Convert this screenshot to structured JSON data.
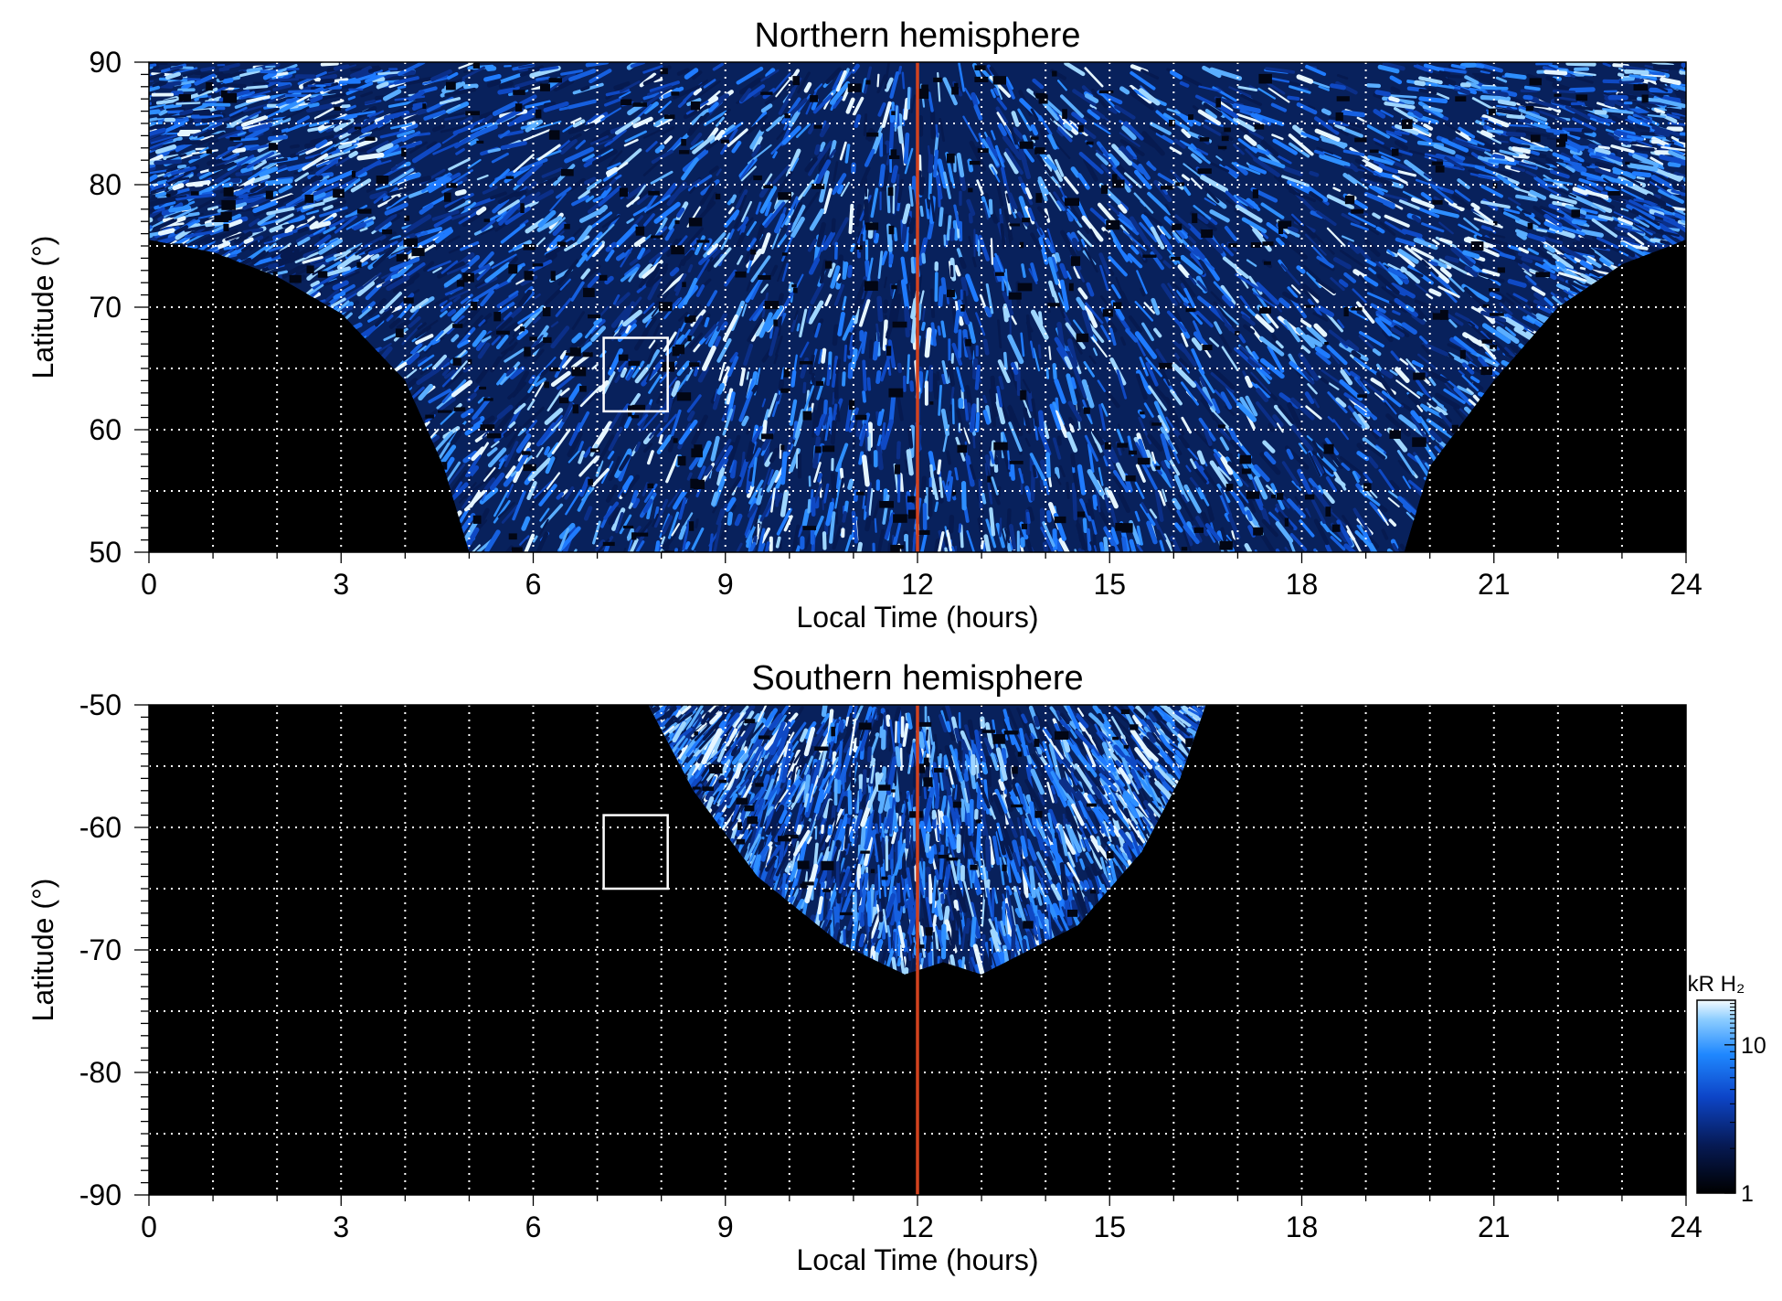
{
  "colors": {
    "background": "#000000",
    "emission_dim": "#0a2a70",
    "emission_mid": "#1f78ff",
    "emission_bright": "#a9dcff",
    "noon_line": "#d2421e",
    "grid": "#ffffff",
    "box": "#ffffff"
  },
  "chart_data": [
    {
      "id": "north",
      "type": "heatmap",
      "title": "Northern hemisphere",
      "xlabel": "Local Time (hours)",
      "ylabel": "Latitude (°)",
      "xlim": [
        0,
        24
      ],
      "ylim": [
        50,
        90
      ],
      "xticks": [
        0,
        3,
        6,
        9,
        12,
        15,
        18,
        21,
        24
      ],
      "yticks": [
        50,
        60,
        70,
        80,
        90
      ],
      "x_grid_step": 1,
      "y_grid_step": 5,
      "grid": true,
      "noon_line_x": 12,
      "highlight_box": {
        "x": [
          7.1,
          8.1
        ],
        "y": [
          61.5,
          67.5
        ]
      },
      "coverage_boundary": [
        [
          0,
          75.5
        ],
        [
          1,
          74.5
        ],
        [
          2,
          72.5
        ],
        [
          3,
          69.5
        ],
        [
          4,
          64
        ],
        [
          4.6,
          57
        ],
        [
          5,
          50
        ],
        [
          19.6,
          50
        ],
        [
          20,
          57
        ],
        [
          21,
          64
        ],
        [
          22,
          70
        ],
        [
          23,
          73.5
        ],
        [
          24,
          75.5
        ]
      ]
    },
    {
      "id": "south",
      "type": "heatmap",
      "title": "Southern hemisphere",
      "xlabel": "Local Time (hours)",
      "ylabel": "Latitude (°)",
      "xlim": [
        0,
        24
      ],
      "ylim": [
        -90,
        -50
      ],
      "xticks": [
        0,
        3,
        6,
        9,
        12,
        15,
        18,
        21,
        24
      ],
      "yticks": [
        -50,
        -60,
        -70,
        -80,
        -90
      ],
      "x_grid_step": 1,
      "y_grid_step": 5,
      "grid": true,
      "noon_line_x": 12,
      "highlight_box": {
        "x": [
          7.1,
          8.1
        ],
        "y": [
          -65,
          -59
        ]
      },
      "coverage_boundary": [
        [
          7.8,
          -50
        ],
        [
          8.5,
          -57
        ],
        [
          9.5,
          -64
        ],
        [
          10.8,
          -69.5
        ],
        [
          11.8,
          -72
        ],
        [
          12.4,
          -71
        ],
        [
          13,
          -72
        ],
        [
          14.5,
          -68
        ],
        [
          15.5,
          -62
        ],
        [
          16.1,
          -56
        ],
        [
          16.5,
          -50
        ]
      ]
    }
  ],
  "colorbar": {
    "label": "kR H₂",
    "scale": "log",
    "range": [
      1,
      20
    ],
    "ticks": [
      1,
      10
    ]
  }
}
